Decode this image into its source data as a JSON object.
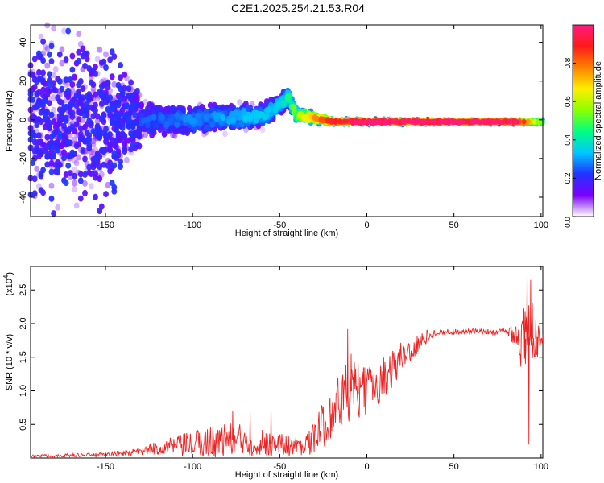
{
  "title": "C2E1.2025.254.21.53.R04",
  "chart_data": [
    {
      "type": "heatmap",
      "title": "C2E1.2025.254.21.53.R04",
      "xlabel": "Height of straight line (km)",
      "ylabel": "Frequency (Hz)",
      "xlim": [
        -193,
        101
      ],
      "ylim": [
        -50,
        49
      ],
      "xticks": [
        -150,
        -100,
        -50,
        0,
        50,
        100
      ],
      "yticks": [
        -40,
        -20,
        0,
        20,
        40
      ],
      "colorbar": {
        "label": "Normalized spectral amplitude",
        "range": [
          0,
          1
        ],
        "ticks": [
          "0.0",
          "0.2",
          "0.4",
          "0.6",
          "0.8"
        ],
        "tick_values": [
          0.0,
          0.2,
          0.4,
          0.6,
          0.8
        ],
        "colormap": [
          "#ffffff",
          "#7a00ff",
          "#2233ff",
          "#00c8ff",
          "#00ff80",
          "#8cff00",
          "#ffee00",
          "#ff8000",
          "#ff1a1a",
          "#ff1a80"
        ]
      },
      "description_points": {
        "centroid_frequency_hz": [
          [
            -190,
            0
          ],
          [
            -150,
            0
          ],
          [
            -100,
            0
          ],
          [
            -60,
            2
          ],
          [
            -50,
            8
          ],
          [
            -45,
            12
          ],
          [
            -40,
            2
          ],
          [
            -30,
            1
          ],
          [
            -20,
            -1
          ],
          [
            0,
            -1
          ],
          [
            50,
            -1
          ],
          [
            100,
            -1
          ]
        ],
        "band_halfwidth_hz": [
          [
            -190,
            45
          ],
          [
            -150,
            38
          ],
          [
            -130,
            12
          ],
          [
            -100,
            10
          ],
          [
            -60,
            8
          ],
          [
            -40,
            5
          ],
          [
            -20,
            2
          ],
          [
            0,
            2
          ],
          [
            50,
            1.5
          ],
          [
            100,
            1.5
          ]
        ],
        "peak_amplitude": [
          [
            -190,
            0.15
          ],
          [
            -150,
            0.2
          ],
          [
            -120,
            0.25
          ],
          [
            -80,
            0.3
          ],
          [
            -50,
            0.35
          ],
          [
            -35,
            0.65
          ],
          [
            -15,
            0.9
          ],
          [
            0,
            1.0
          ],
          [
            50,
            1.0
          ],
          [
            85,
            0.95
          ],
          [
            100,
            0.5
          ]
        ]
      }
    },
    {
      "type": "line",
      "xlabel": "Height of straight line (km)",
      "ylabel": "SNR (10 * v/v)",
      "exponent_label": "(x10",
      "exponent_power": "4",
      "exponent_close": ")",
      "xlim": [
        -193,
        101
      ],
      "ylim": [
        0,
        28500
      ],
      "xticks": [
        -150,
        -100,
        -50,
        0,
        50,
        100
      ],
      "yticks": [
        5000,
        10000,
        15000,
        20000,
        25000
      ],
      "ytick_labels": [
        "0.5",
        "1.0",
        "1.5",
        "2.0",
        "2.5"
      ],
      "series": [
        {
          "name": "SNR",
          "color": "#ee2222",
          "baseline": [
            [
              -193,
              300
            ],
            [
              -150,
              500
            ],
            [
              -130,
              900
            ],
            [
              -120,
              1500
            ],
            [
              -100,
              2000
            ],
            [
              -80,
              2800
            ],
            [
              -60,
              2300
            ],
            [
              -40,
              1700
            ],
            [
              -32,
              2500
            ],
            [
              -25,
              5000
            ],
            [
              -20,
              7000
            ],
            [
              -15,
              8500
            ],
            [
              -10,
              10000
            ],
            [
              -5,
              9500
            ],
            [
              0,
              10000
            ],
            [
              5,
              11000
            ],
            [
              10,
              12000
            ],
            [
              15,
              13500
            ],
            [
              20,
              15000
            ],
            [
              25,
              16000
            ],
            [
              30,
              17000
            ],
            [
              35,
              18200
            ],
            [
              40,
              18700
            ],
            [
              50,
              18800
            ],
            [
              60,
              18800
            ],
            [
              70,
              18700
            ],
            [
              80,
              18800
            ],
            [
              86,
              18800
            ],
            [
              88,
              17000
            ],
            [
              90,
              17500
            ],
            [
              92,
              18000
            ],
            [
              94,
              18000
            ],
            [
              96,
              17500
            ],
            [
              98,
              18000
            ],
            [
              101,
              18200
            ]
          ],
          "noise_amplitude": [
            [
              -193,
              200
            ],
            [
              -150,
              300
            ],
            [
              -130,
              600
            ],
            [
              -110,
              1500
            ],
            [
              -90,
              2500
            ],
            [
              -70,
              2500
            ],
            [
              -50,
              1800
            ],
            [
              -35,
              1500
            ],
            [
              -25,
              3500
            ],
            [
              -15,
              4500
            ],
            [
              -10,
              5000
            ],
            [
              0,
              3500
            ],
            [
              15,
              3000
            ],
            [
              30,
              1500
            ],
            [
              40,
              400
            ],
            [
              80,
              500
            ],
            [
              86,
              2500
            ],
            [
              90,
              5500
            ],
            [
              93,
              5000
            ],
            [
              96,
              3000
            ],
            [
              101,
              1500
            ]
          ],
          "spikes": [
            [
              -77,
              7000
            ],
            [
              -67,
              6800
            ],
            [
              -55,
              7800
            ],
            [
              -11,
              19200
            ],
            [
              -9,
              15500
            ],
            [
              -5,
              14000
            ],
            [
              91,
              14000
            ],
            [
              92,
              28200
            ],
            [
              93,
              2000
            ],
            [
              94,
              26500
            ],
            [
              95,
              23000
            ],
            [
              97,
              20500
            ],
            [
              98,
              15000
            ]
          ]
        }
      ]
    }
  ]
}
